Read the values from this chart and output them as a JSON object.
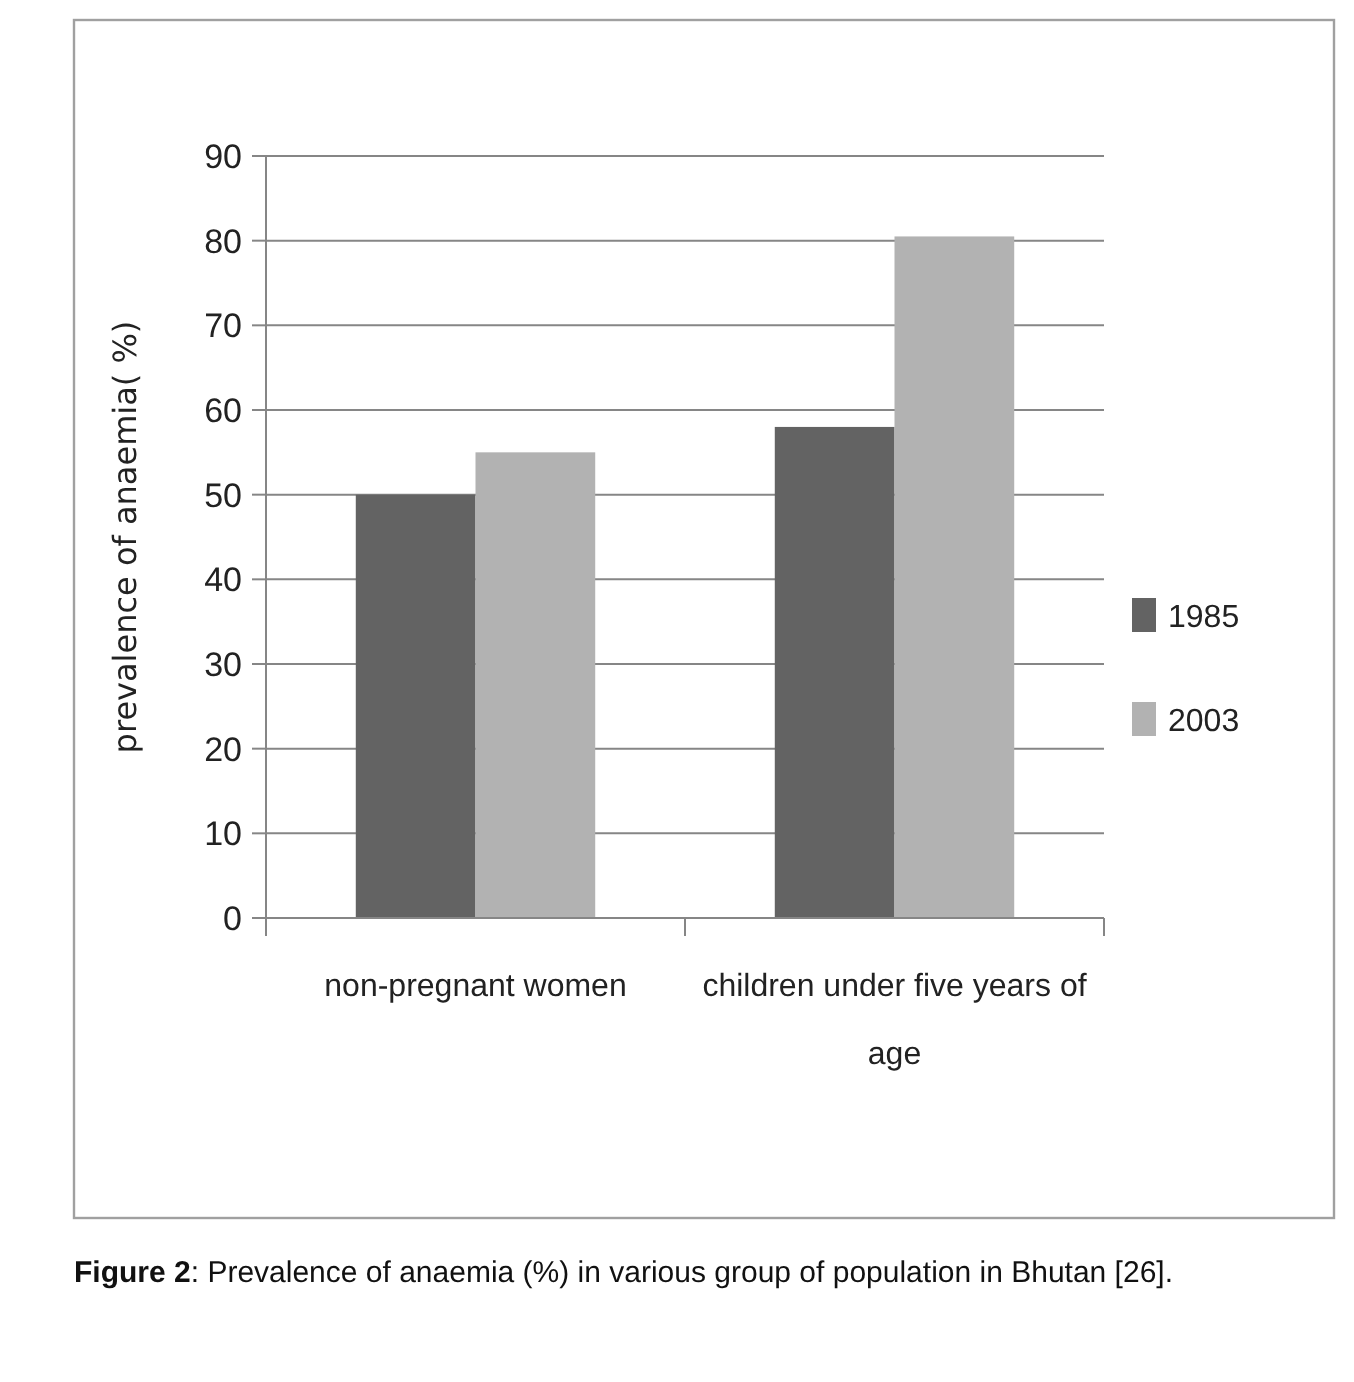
{
  "chart_data": {
    "type": "bar",
    "ylabel": "prevalence of anaemia( %)",
    "categories": [
      "non-pregnant women",
      "children under five years of age"
    ],
    "series": [
      {
        "name": "1985",
        "color": "#636363",
        "values": [
          50,
          58
        ]
      },
      {
        "name": "2003",
        "color": "#b2b2b2",
        "values": [
          55,
          80.5
        ]
      }
    ],
    "ylim": [
      0,
      90
    ],
    "yticks": [
      0,
      10,
      20,
      30,
      40,
      50,
      60,
      70,
      80,
      90
    ],
    "grid": "y",
    "legend": "right",
    "annotations": [
      "Figure 2: Prevalence of anaemia (%) in various group of population in Bhutan [26]."
    ]
  }
}
